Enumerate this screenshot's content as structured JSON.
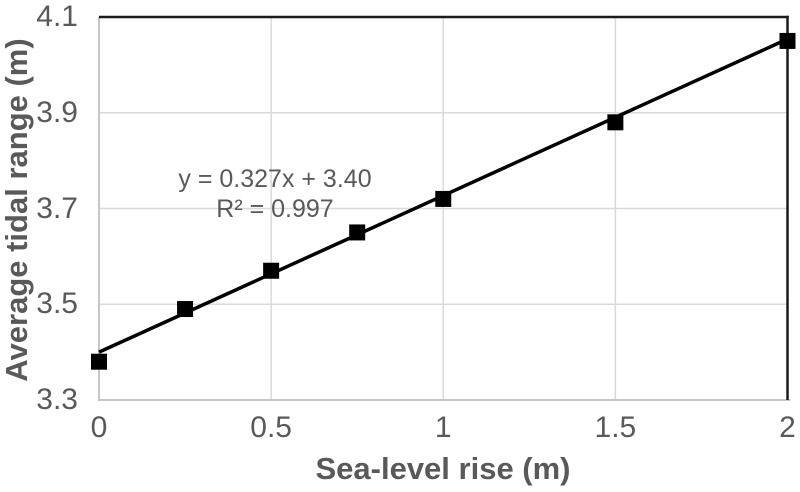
{
  "chart_data": {
    "type": "scatter",
    "title": "",
    "xlabel": "Sea-level rise (m)",
    "ylabel": "Average tidal range (m)",
    "x": [
      0,
      0.25,
      0.5,
      0.75,
      1,
      1.5,
      2
    ],
    "y": [
      3.38,
      3.49,
      3.57,
      3.65,
      3.72,
      3.88,
      4.05
    ],
    "xlim": [
      0,
      2
    ],
    "ylim": [
      3.3,
      4.1
    ],
    "xticks": [
      0,
      0.5,
      1,
      1.5,
      2
    ],
    "xtick_labels": [
      "0",
      "0.5",
      "1",
      "1.5",
      "2"
    ],
    "yticks": [
      3.3,
      3.5,
      3.7,
      3.9,
      4.1
    ],
    "ytick_labels": [
      "3.3",
      "3.5",
      "3.7",
      "3.9",
      "4.1"
    ],
    "grid": true,
    "legend": "none",
    "trendline": {
      "slope": 0.327,
      "intercept": 3.4,
      "equation_label": "y = 0.327x + 3.40",
      "r_squared_label": "R² = 0.997"
    },
    "marker": {
      "shape": "square",
      "color": "#000000",
      "size": 16
    },
    "line_color": "#000000",
    "colors": {
      "text": "#595959",
      "gridline": "#d9d9d9",
      "axis_line": "#bfbfbf",
      "plot_border": "#1a1a1a",
      "background": "#ffffff"
    }
  }
}
